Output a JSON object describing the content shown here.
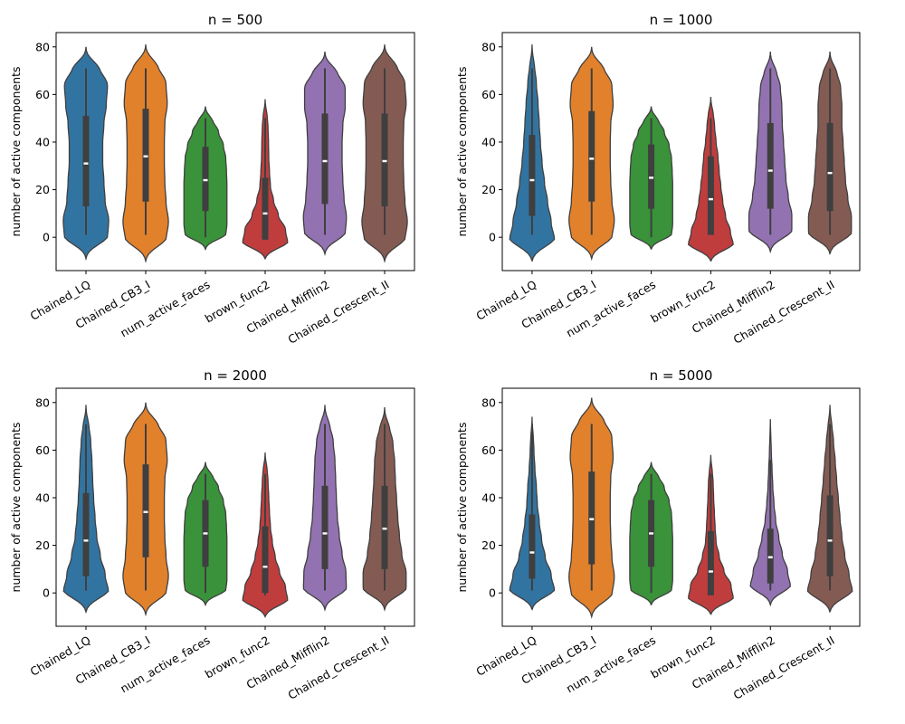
{
  "figure": {
    "background": "#ffffff"
  },
  "chart_data": [
    {
      "type": "violin",
      "title": "n = 500",
      "xlabel": "",
      "ylabel": "number of active components",
      "ylim": [
        -14,
        86
      ],
      "yticks": [
        0,
        20,
        40,
        60,
        80
      ],
      "categories": [
        "Chained_LQ",
        "Chained_CB3_I",
        "num_active_faces",
        "brown_func2",
        "Chained_Mifflin2",
        "Chained_Crescent_II"
      ],
      "colors": [
        "#3274a1",
        "#e1812c",
        "#3a923a",
        "#c03d3e",
        "#9372b2",
        "#845b53"
      ],
      "violins": [
        {
          "extent": [
            -9,
            80
          ],
          "whisker": [
            1,
            71
          ],
          "q1": 13,
          "median": 31,
          "q3": 51,
          "profile": [
            0.2,
            0.9,
            0.95,
            0.8,
            0.75,
            0.7,
            0.7,
            0.75,
            0.85,
            0.9,
            0.55,
            0.05
          ]
        },
        {
          "extent": [
            -10,
            81
          ],
          "whisker": [
            1,
            71
          ],
          "q1": 15,
          "median": 34,
          "q3": 54,
          "profile": [
            0.2,
            0.85,
            0.95,
            0.85,
            0.8,
            0.78,
            0.78,
            0.8,
            0.9,
            0.85,
            0.5,
            0.05
          ]
        },
        {
          "extent": [
            -5,
            55
          ],
          "whisker": [
            0,
            50
          ],
          "q1": 11,
          "median": 24,
          "q3": 38,
          "profile": [
            0.2,
            0.85,
            0.9,
            0.9,
            0.9,
            0.9,
            0.88,
            0.85,
            0.75,
            0.55,
            0.3,
            0.05
          ]
        },
        {
          "extent": [
            -9,
            58
          ],
          "whisker": [
            -1,
            50
          ],
          "q1": -1,
          "median": 10,
          "q3": 25,
          "profile": [
            0.3,
            0.95,
            0.85,
            0.55,
            0.35,
            0.22,
            0.18,
            0.15,
            0.14,
            0.12,
            0.08,
            0.02
          ]
        },
        {
          "extent": [
            -7,
            78
          ],
          "whisker": [
            1,
            71
          ],
          "q1": 14,
          "median": 32,
          "q3": 52,
          "profile": [
            0.2,
            0.85,
            0.9,
            0.8,
            0.75,
            0.72,
            0.72,
            0.75,
            0.85,
            0.85,
            0.5,
            0.05
          ]
        },
        {
          "extent": [
            -10,
            81
          ],
          "whisker": [
            1,
            71
          ],
          "q1": 13,
          "median": 32,
          "q3": 52,
          "profile": [
            0.2,
            0.85,
            0.95,
            0.85,
            0.8,
            0.78,
            0.78,
            0.8,
            0.9,
            0.85,
            0.5,
            0.05
          ]
        }
      ]
    },
    {
      "type": "violin",
      "title": "n = 1000",
      "xlabel": "",
      "ylabel": "number of active components",
      "ylim": [
        -14,
        86
      ],
      "yticks": [
        0,
        20,
        40,
        60,
        80
      ],
      "categories": [
        "Chained_LQ",
        "Chained_CB3_I",
        "num_active_faces",
        "brown_func2",
        "Chained_Mifflin2",
        "Chained_Crescent_II"
      ],
      "colors": [
        "#3274a1",
        "#e1812c",
        "#3a923a",
        "#c03d3e",
        "#9372b2",
        "#845b53"
      ],
      "violins": [
        {
          "extent": [
            -10,
            81
          ],
          "whisker": [
            1,
            71
          ],
          "q1": 9,
          "median": 24,
          "q3": 43,
          "profile": [
            0.25,
            0.95,
            0.8,
            0.65,
            0.52,
            0.42,
            0.35,
            0.3,
            0.25,
            0.18,
            0.1,
            0.02
          ]
        },
        {
          "extent": [
            -9,
            80
          ],
          "whisker": [
            1,
            71
          ],
          "q1": 15,
          "median": 33,
          "q3": 53,
          "profile": [
            0.2,
            0.85,
            0.95,
            0.85,
            0.8,
            0.78,
            0.78,
            0.8,
            0.9,
            0.85,
            0.5,
            0.05
          ]
        },
        {
          "extent": [
            -5,
            55
          ],
          "whisker": [
            0,
            50
          ],
          "q1": 12,
          "median": 25,
          "q3": 39,
          "profile": [
            0.2,
            0.85,
            0.9,
            0.9,
            0.9,
            0.9,
            0.88,
            0.85,
            0.75,
            0.55,
            0.3,
            0.05
          ]
        },
        {
          "extent": [
            -10,
            59
          ],
          "whisker": [
            1,
            50
          ],
          "q1": 1,
          "median": 16,
          "q3": 34,
          "profile": [
            0.3,
            0.95,
            0.82,
            0.62,
            0.5,
            0.42,
            0.35,
            0.3,
            0.22,
            0.16,
            0.1,
            0.02
          ]
        },
        {
          "extent": [
            -6,
            78
          ],
          "whisker": [
            1,
            71
          ],
          "q1": 12,
          "median": 28,
          "q3": 48,
          "profile": [
            0.2,
            0.9,
            0.9,
            0.75,
            0.65,
            0.6,
            0.55,
            0.5,
            0.48,
            0.42,
            0.25,
            0.04
          ]
        },
        {
          "extent": [
            -7,
            78
          ],
          "whisker": [
            1,
            71
          ],
          "q1": 11,
          "median": 27,
          "q3": 48,
          "profile": [
            0.2,
            0.9,
            0.9,
            0.75,
            0.65,
            0.6,
            0.55,
            0.5,
            0.5,
            0.45,
            0.28,
            0.04
          ]
        }
      ]
    },
    {
      "type": "violin",
      "title": "n = 2000",
      "xlabel": "",
      "ylabel": "number of active components",
      "ylim": [
        -14,
        86
      ],
      "yticks": [
        0,
        20,
        40,
        60,
        80
      ],
      "categories": [
        "Chained_LQ",
        "Chained_CB3_I",
        "num_active_faces",
        "brown_func2",
        "Chained_Mifflin2",
        "Chained_Crescent_II"
      ],
      "colors": [
        "#3274a1",
        "#e1812c",
        "#3a923a",
        "#c03d3e",
        "#9372b2",
        "#845b53"
      ],
      "violins": [
        {
          "extent": [
            -8,
            79
          ],
          "whisker": [
            1,
            71
          ],
          "q1": 7,
          "median": 22,
          "q3": 42,
          "profile": [
            0.25,
            0.95,
            0.8,
            0.6,
            0.45,
            0.38,
            0.32,
            0.28,
            0.25,
            0.2,
            0.12,
            0.02
          ]
        },
        {
          "extent": [
            -9,
            80
          ],
          "whisker": [
            1,
            71
          ],
          "q1": 15,
          "median": 34,
          "q3": 54,
          "profile": [
            0.2,
            0.85,
            0.95,
            0.85,
            0.8,
            0.78,
            0.78,
            0.8,
            0.9,
            0.85,
            0.5,
            0.05
          ]
        },
        {
          "extent": [
            -5,
            55
          ],
          "whisker": [
            0,
            50
          ],
          "q1": 11,
          "median": 25,
          "q3": 39,
          "profile": [
            0.2,
            0.85,
            0.9,
            0.9,
            0.9,
            0.9,
            0.88,
            0.85,
            0.75,
            0.55,
            0.3,
            0.05
          ]
        },
        {
          "extent": [
            -10,
            59
          ],
          "whisker": [
            -1,
            50
          ],
          "q1": 0,
          "median": 11,
          "q3": 28,
          "profile": [
            0.3,
            0.95,
            0.85,
            0.6,
            0.42,
            0.3,
            0.22,
            0.18,
            0.15,
            0.12,
            0.08,
            0.02
          ]
        },
        {
          "extent": [
            -7,
            79
          ],
          "whisker": [
            1,
            71
          ],
          "q1": 10,
          "median": 25,
          "q3": 45,
          "profile": [
            0.2,
            0.9,
            0.88,
            0.72,
            0.6,
            0.52,
            0.48,
            0.45,
            0.42,
            0.35,
            0.2,
            0.03
          ]
        },
        {
          "extent": [
            -7,
            78
          ],
          "whisker": [
            1,
            71
          ],
          "q1": 10,
          "median": 27,
          "q3": 45,
          "profile": [
            0.2,
            0.9,
            0.9,
            0.72,
            0.62,
            0.55,
            0.5,
            0.45,
            0.42,
            0.35,
            0.2,
            0.03
          ]
        }
      ]
    },
    {
      "type": "violin",
      "title": "n = 5000",
      "xlabel": "",
      "ylabel": "number of active components",
      "ylim": [
        -14,
        86
      ],
      "yticks": [
        0,
        20,
        40,
        60,
        80
      ],
      "categories": [
        "Chained_LQ",
        "Chained_CB3_I",
        "num_active_faces",
        "brown_func2",
        "Chained_Mifflin2",
        "Chained_Crescent_II"
      ],
      "colors": [
        "#3274a1",
        "#e1812c",
        "#3a923a",
        "#c03d3e",
        "#9372b2",
        "#845b53"
      ],
      "violins": [
        {
          "extent": [
            -7,
            74
          ],
          "whisker": [
            1,
            71
          ],
          "q1": 6,
          "median": 17,
          "q3": 33,
          "profile": [
            0.25,
            0.95,
            0.8,
            0.55,
            0.4,
            0.3,
            0.22,
            0.18,
            0.12,
            0.08,
            0.05,
            0.01
          ]
        },
        {
          "extent": [
            -10,
            82
          ],
          "whisker": [
            1,
            71
          ],
          "q1": 12,
          "median": 31,
          "q3": 51,
          "profile": [
            0.2,
            0.85,
            0.95,
            0.85,
            0.8,
            0.78,
            0.78,
            0.8,
            0.9,
            0.85,
            0.5,
            0.05
          ]
        },
        {
          "extent": [
            -5,
            55
          ],
          "whisker": [
            0,
            50
          ],
          "q1": 11,
          "median": 25,
          "q3": 39,
          "profile": [
            0.2,
            0.85,
            0.9,
            0.9,
            0.9,
            0.9,
            0.88,
            0.85,
            0.75,
            0.55,
            0.3,
            0.05
          ]
        },
        {
          "extent": [
            -9,
            58
          ],
          "whisker": [
            -1,
            50
          ],
          "q1": -1,
          "median": 9,
          "q3": 26,
          "profile": [
            0.3,
            0.95,
            0.85,
            0.55,
            0.35,
            0.22,
            0.18,
            0.15,
            0.12,
            0.1,
            0.06,
            0.01
          ]
        },
        {
          "extent": [
            -5,
            73
          ],
          "whisker": [
            1,
            56
          ],
          "q1": 4,
          "median": 15,
          "q3": 27,
          "profile": [
            0.2,
            0.85,
            0.72,
            0.5,
            0.35,
            0.22,
            0.15,
            0.1,
            0.07,
            0.04,
            0.02,
            0.01
          ]
        },
        {
          "extent": [
            -8,
            79
          ],
          "whisker": [
            1,
            71
          ],
          "q1": 7,
          "median": 22,
          "q3": 41,
          "profile": [
            0.25,
            0.95,
            0.8,
            0.62,
            0.5,
            0.42,
            0.35,
            0.28,
            0.22,
            0.15,
            0.08,
            0.02
          ]
        }
      ]
    }
  ]
}
